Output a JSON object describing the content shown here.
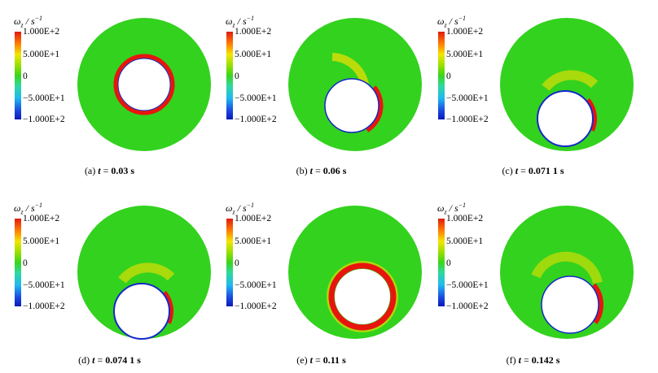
{
  "colorbar": {
    "title": "ω_z / s^-1",
    "ticks": [
      "1.000E+2",
      "5.000E+1",
      "0",
      "-5.000E+1",
      "-1.000E+2"
    ]
  },
  "panels": [
    {
      "label": "(a)",
      "t_prefix": "t",
      "equals": "=",
      "value": "0.03",
      "unit": "s"
    },
    {
      "label": "(b)",
      "t_prefix": "t",
      "equals": "=",
      "value": "0.06",
      "unit": "s"
    },
    {
      "label": "(c)",
      "t_prefix": "t",
      "equals": "=",
      "value": "0.071 1",
      "unit": "s"
    },
    {
      "label": "(d)",
      "t_prefix": "t",
      "equals": "=",
      "value": "0.074 1",
      "unit": "s"
    },
    {
      "label": "(e)",
      "t_prefix": "t",
      "equals": "=",
      "value": "0.11",
      "unit": "s"
    },
    {
      "label": "(f)",
      "t_prefix": "t",
      "equals": "=",
      "value": "0.142",
      "unit": "s"
    }
  ],
  "colors": {
    "background_field": "#33d21e",
    "positive_vorticity": "#e8150e",
    "negative_vorticity": "#1428c8",
    "particle": "#ffffff"
  }
}
